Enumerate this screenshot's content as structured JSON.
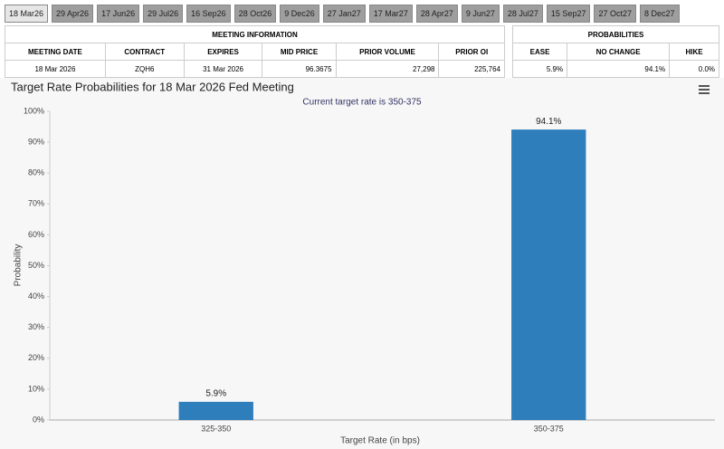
{
  "tabs": [
    "18 Mar26",
    "29 Apr26",
    "17 Jun26",
    "29 Jul26",
    "16 Sep26",
    "28 Oct26",
    "9 Dec26",
    "27 Jan27",
    "17 Mar27",
    "28 Apr27",
    "9 Jun27",
    "28 Jul27",
    "15 Sep27",
    "27 Oct27",
    "8 Dec27"
  ],
  "meeting_table": {
    "title": "MEETING INFORMATION",
    "columns": [
      "MEETING DATE",
      "CONTRACT",
      "EXPIRES",
      "MID PRICE",
      "PRIOR VOLUME",
      "PRIOR OI"
    ],
    "row": [
      "18 Mar 2026",
      "ZQH6",
      "31 Mar 2026",
      "96.3675",
      "27,298",
      "225,764"
    ]
  },
  "prob_table": {
    "title": "PROBABILITIES",
    "columns": [
      "EASE",
      "NO CHANGE",
      "HIKE"
    ],
    "row": [
      "5.9%",
      "94.1%",
      "0.0%"
    ]
  },
  "chart_data": {
    "type": "bar",
    "title": "Target Rate Probabilities for 18 Mar 2026 Fed Meeting",
    "subtitle": "Current target rate is 350-375",
    "x_label": "Target Rate (in bps)",
    "y_label": "Probability",
    "categories": [
      "325-350",
      "350-375"
    ],
    "values": [
      5.9,
      94.1
    ],
    "value_labels": [
      "5.9%",
      "94.1%"
    ],
    "color": "#2f7ebc",
    "ylim": [
      0,
      100
    ],
    "yticks": [
      {
        "value": 0,
        "label": "0%"
      },
      {
        "value": 10,
        "label": "10%"
      },
      {
        "value": 20,
        "label": "20%"
      },
      {
        "value": 30,
        "label": "30%"
      },
      {
        "value": 40,
        "label": "40%"
      },
      {
        "value": 50,
        "label": "50%"
      },
      {
        "value": 60,
        "label": "60%"
      },
      {
        "value": 70,
        "label": "70%"
      },
      {
        "value": 80,
        "label": "80%"
      },
      {
        "value": 90,
        "label": "90%"
      },
      {
        "value": 100,
        "label": "100%"
      }
    ],
    "grid": false
  }
}
